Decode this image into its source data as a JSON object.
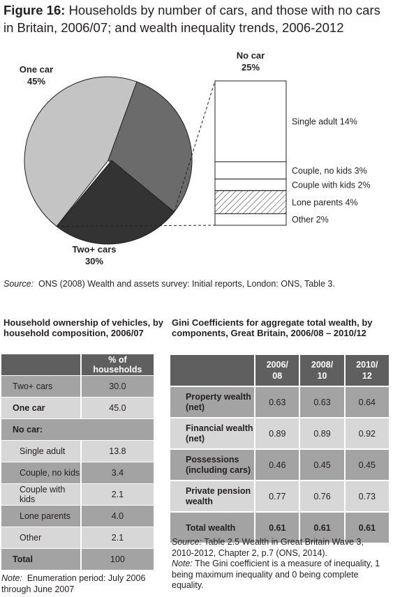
{
  "figure": {
    "label": "Figure 16:",
    "title": "Households by number of cars, and those with no cars in Britain, 2006/07; and wealth inequality trends, 2006-2012"
  },
  "chart_data": [
    {
      "type": "pie",
      "slices": [
        {
          "label": "One car",
          "value": 45,
          "display": "45%",
          "color": "#c4c4c4"
        },
        {
          "label": "Two+ cars",
          "value": 30,
          "display": "30%",
          "color": "#6b6b6b"
        },
        {
          "label": "No car",
          "value": 25,
          "display": "25%",
          "color": "#333333"
        }
      ],
      "breakdown": {
        "of": "No car",
        "total_display": "25%",
        "items": [
          {
            "label": "Single adult 14%",
            "value": 14,
            "fill": "white"
          },
          {
            "label": "Couple, no kids 3%",
            "value": 3,
            "fill": "white"
          },
          {
            "label": "Couple with kids 2%",
            "value": 2,
            "fill": "white"
          },
          {
            "label": "Lone parents 4%",
            "value": 4,
            "fill": "hatched"
          },
          {
            "label": "Other 2%",
            "value": 2,
            "fill": "white"
          }
        ]
      }
    },
    {
      "type": "table",
      "title": "Household ownership of vehicles, by household composition, 2006/07",
      "columns": [
        "",
        "% of households"
      ],
      "rows": [
        {
          "label": "Two+ cars",
          "value": "30.0"
        },
        {
          "label": "One car",
          "value": "45.0"
        },
        {
          "label": "No car:",
          "value": ""
        },
        {
          "label": "Single adult",
          "value": "13.8"
        },
        {
          "label": "Couple, no kids",
          "value": "3.4"
        },
        {
          "label": "Couple with kids",
          "value": "2.1"
        },
        {
          "label": "Lone parents",
          "value": "4.0"
        },
        {
          "label": "Other",
          "value": "2.1"
        },
        {
          "label": "Total",
          "value": "100"
        }
      ]
    },
    {
      "type": "table",
      "title": "Gini Coefficients for aggregate total wealth, by components, Great Britain, 2006/08 – 2010/12",
      "columns": [
        "",
        "2006/ 08",
        "2008/ 10",
        "2010/ 12"
      ],
      "rows": [
        {
          "label": "Property wealth (net)",
          "values": [
            "0.63",
            "0.63",
            "0.64"
          ]
        },
        {
          "label": "Financial wealth (net)",
          "values": [
            "0.89",
            "0.89",
            "0.92"
          ]
        },
        {
          "label": "Possessions (including cars)",
          "values": [
            "0.46",
            "0.45",
            "0.45"
          ]
        },
        {
          "label": "Private pension wealth",
          "values": [
            "0.77",
            "0.76",
            "0.73"
          ]
        },
        {
          "label": "Total wealth",
          "values": [
            "0.61",
            "0.61",
            "0.61"
          ]
        }
      ]
    }
  ],
  "source": {
    "prefix": "Source:",
    "text": "ONS (2008) Wealth and assets survey: Initial reports, London: ONS, Table 3."
  },
  "table1_note": {
    "prefix": "Note:",
    "text": "Enumeration period: July 2006 through June 2007"
  },
  "table2_notes": {
    "source_prefix": "Source:",
    "source_text": "Table 2.5 Wealth in Great Britain Wave 3, 2010-2012, Chapter 2, p.7 (ONS, 2014).",
    "note_prefix": "Note:",
    "note_text": "The Gini coefficient is a measure of inequality, 1 being maximum inequality and 0 being complete equality."
  }
}
